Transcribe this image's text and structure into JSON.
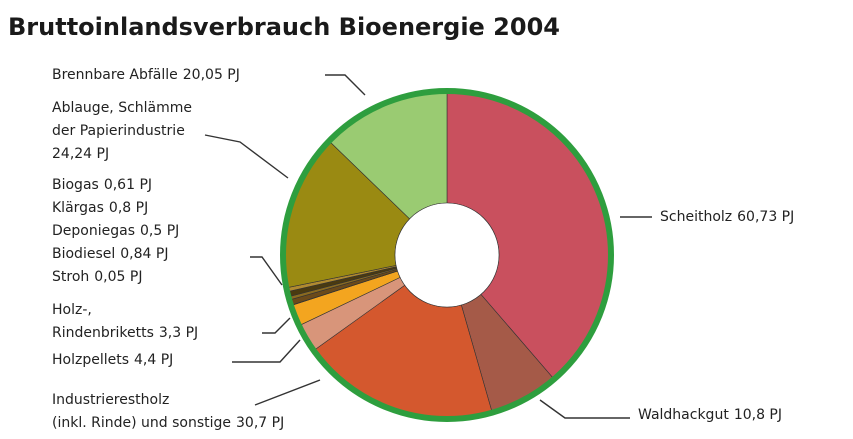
{
  "chart_data": {
    "type": "donut",
    "title": "Bruttoinlandsverbrauch Bioenergie 2004",
    "categories": [
      "Scheitholz",
      "Waldhackgut",
      "Industrierestholz\n(inkl. Rinde) und sonstige",
      "Holzpellets",
      "Holz-,\nRindenbriketts",
      "Stroh",
      "Biodiesel",
      "Deponiegas",
      "Klärgas",
      "Biogas",
      "Ablauge, Schlämme\nder Papierindustrie",
      "Brennbare Abfälle"
    ],
    "values": [
      60.73,
      10.8,
      30.7,
      4.4,
      3.3,
      0.05,
      0.84,
      0.5,
      0.8,
      0.61,
      24.24,
      20.05
    ],
    "value_labels": [
      "60,73 PJ",
      "10,8 PJ",
      "30,7 PJ",
      "4,4 PJ",
      "3,3 PJ",
      "0,05 PJ",
      "0,84 PJ",
      "0,5 PJ",
      "0,8 PJ",
      "0,61 PJ",
      "24,24 PJ",
      "20,05 PJ"
    ],
    "colors": [
      "#c9505e",
      "#a55a48",
      "#d4582e",
      "#d8957a",
      "#f3a51f",
      "#e8c84a",
      "#6b4a1a",
      "#8a6a20",
      "#4a3a10",
      "#b08a30",
      "#9a8a12",
      "#9acb72"
    ],
    "ring_color": "#2e9e3e"
  }
}
